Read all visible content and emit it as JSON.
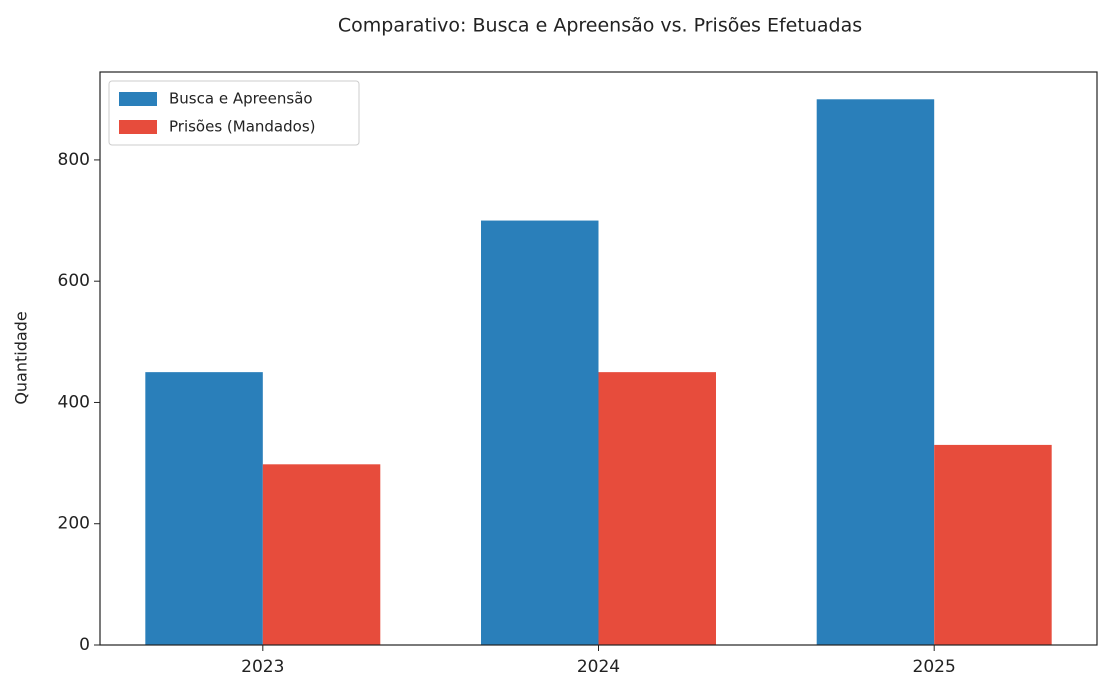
{
  "chart_data": {
    "type": "bar",
    "title": "Comparativo: Busca e Apreensão vs. Prisões Efetuadas",
    "y_label": "Quantidade",
    "categories": [
      "2023",
      "2024",
      "2025"
    ],
    "series": [
      {
        "name": "Busca e Apreensão",
        "color": "#2a7fba",
        "values": [
          450,
          700,
          900
        ]
      },
      {
        "name": "Prisões (Mandados)",
        "color": "#e74c3c",
        "values": [
          298,
          450,
          330
        ]
      }
    ],
    "ylim": [
      0,
      945
    ],
    "yticks": [
      0,
      200,
      400,
      600,
      800
    ],
    "legend": "upper left"
  }
}
